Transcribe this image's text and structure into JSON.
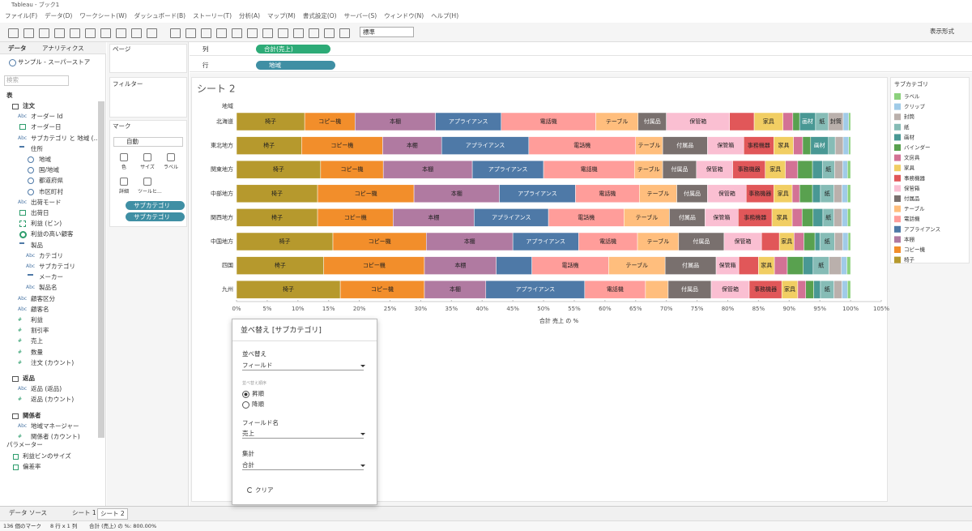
{
  "window": {
    "title": "Tableau - ブック1",
    "menu": [
      "ファイル(F)",
      "データ(D)",
      "ワークシート(W)",
      "ダッシュボード(B)",
      "ストーリー(T)",
      "分析(A)",
      "マップ(M)",
      "書式設定(O)",
      "サーバー(S)",
      "ウィンドウ(N)",
      "ヘルプ(H)"
    ]
  },
  "toolbar": {
    "standard": "標準",
    "show_me": "表示形式"
  },
  "data_pane": {
    "tabs": [
      "データ",
      "アナリティクス"
    ],
    "source": "サンプル - スーパーストア",
    "search": "検索",
    "section": "表",
    "tables": [
      {
        "name": "注文",
        "fields": [
          {
            "label": "オーダー Id",
            "icon": "Abc"
          },
          {
            "label": "オーダー日",
            "icon": "date"
          },
          {
            "label": "サブカテゴリ と 地域 (...",
            "icon": "Abc"
          },
          {
            "label": "住所",
            "icon": "hier",
            "children": [
              {
                "label": "地域",
                "icon": "geo"
              },
              {
                "label": "国/地域",
                "icon": "geo"
              },
              {
                "label": "都道府県",
                "icon": "geo"
              },
              {
                "label": "市区町村",
                "icon": "geo"
              }
            ]
          },
          {
            "label": "出荷モード",
            "icon": "Abc"
          },
          {
            "label": "出荷日",
            "icon": "date"
          },
          {
            "label": "利益 (ビン)",
            "icon": "bin"
          },
          {
            "label": "利益の高い顧客",
            "icon": "set"
          },
          {
            "label": "製品",
            "icon": "hier",
            "children": [
              {
                "label": "カテゴリ",
                "icon": "Abc"
              },
              {
                "label": "サブカテゴリ",
                "icon": "Abc"
              },
              {
                "label": "メーカー",
                "icon": "calc"
              },
              {
                "label": "製品名",
                "icon": "Abc"
              }
            ]
          },
          {
            "label": "顧客区分",
            "icon": "Abc"
          },
          {
            "label": "顧客名",
            "icon": "Abc"
          },
          {
            "label": "利益",
            "icon": "#"
          },
          {
            "label": "割引率",
            "icon": "#"
          },
          {
            "label": "売上",
            "icon": "#"
          },
          {
            "label": "数量",
            "icon": "#"
          },
          {
            "label": "注文 (カウント)",
            "icon": "#"
          }
        ]
      },
      {
        "name": "返品",
        "fields": [
          {
            "label": "返品 (返品)",
            "icon": "Abc"
          },
          {
            "label": "返品 (カウント)",
            "icon": "#"
          }
        ]
      },
      {
        "name": "関係者",
        "fields": [
          {
            "label": "地域マネージャー",
            "icon": "Abc"
          },
          {
            "label": "関係者 (カウント)",
            "icon": "#"
          }
        ]
      }
    ],
    "parameters_title": "パラメーター",
    "parameters": [
      "利益ビンのサイズ",
      "偏差率"
    ]
  },
  "shelves": {
    "pages": "ページ",
    "filters": "フィルター",
    "marks": "マーク",
    "mark_type": "自動",
    "mark_buttons": [
      "色",
      "サイズ",
      "ラベル",
      "詳細",
      "ツールヒ..."
    ],
    "mark_pills": [
      "サブカテゴリ",
      "サブカテゴリ"
    ],
    "columns_label": "列",
    "columns_pill": "合計(売上)",
    "rows_label": "行",
    "rows_pill": "地域"
  },
  "chart_data": {
    "type": "stacked_bar_horizontal",
    "title": "シート 2",
    "y_label": "地域",
    "x_label": "合計 売上 の %",
    "legend_title": "サブカテゴリ",
    "legend": "right",
    "grid": false,
    "categories": [
      "北海道",
      "東北地方",
      "関東地方",
      "中部地方",
      "関西地方",
      "中国地方",
      "四国",
      "九州"
    ],
    "xlim": [
      0,
      105
    ],
    "xticks": [
      {
        "value": 0,
        "label": "0%"
      },
      {
        "value": 5,
        "label": "5%"
      },
      {
        "value": 10,
        "label": "10%"
      },
      {
        "value": 15,
        "label": "15%"
      },
      {
        "value": 20,
        "label": "20%"
      },
      {
        "value": 25,
        "label": "25%"
      },
      {
        "value": 30,
        "label": "30%"
      },
      {
        "value": 35,
        "label": "35%"
      },
      {
        "value": 40,
        "label": "40%"
      },
      {
        "value": 45,
        "label": "45%"
      },
      {
        "value": 50,
        "label": "50%"
      },
      {
        "value": 55,
        "label": "55%"
      },
      {
        "value": 60,
        "label": "60%"
      },
      {
        "value": 65,
        "label": "65%"
      },
      {
        "value": 70,
        "label": "70%"
      },
      {
        "value": 75,
        "label": "75%"
      },
      {
        "value": 80,
        "label": "80%"
      },
      {
        "value": 85,
        "label": "85%"
      },
      {
        "value": 90,
        "label": "90%"
      },
      {
        "value": 95,
        "label": "95%"
      },
      {
        "value": 100,
        "label": "100%"
      },
      {
        "value": 105,
        "label": "105%"
      }
    ],
    "series": [
      {
        "name": "椅子",
        "color": "#b6992d",
        "values": [
          11.1,
          10.6,
          13.7,
          13.2,
          13.2,
          15.7,
          14.2,
          16.9
        ]
      },
      {
        "name": "コピー機",
        "color": "#f28e2b",
        "values": [
          8.2,
          13.2,
          10.2,
          15.7,
          12.3,
          15.2,
          16.4,
          13.7
        ]
      },
      {
        "name": "本棚",
        "color": "#b07aa1",
        "values": [
          13.1,
          9.6,
          14.5,
          13.9,
          13.2,
          14.1,
          11.7,
          10.0
        ]
      },
      {
        "name": "アプライアンス",
        "color": "#4e79a7",
        "values": [
          10.7,
          14.2,
          11.6,
          12.4,
          12.1,
          10.7,
          5.8,
          16.1
        ]
      },
      {
        "name": "電話機",
        "color": "#ff9d9a",
        "values": [
          15.4,
          17.4,
          14.8,
          10.4,
          12.3,
          9.6,
          12.5,
          9.9
        ]
      },
      {
        "name": "テーブル",
        "color": "#ffbe7d",
        "values": [
          6.9,
          4.4,
          4.6,
          6.1,
          7.4,
          6.7,
          9.2,
          3.7
        ]
      },
      {
        "name": "付属品",
        "color": "#79706e",
        "values": [
          4.6,
          7.3,
          5.5,
          5.0,
          5.8,
          7.4,
          8.3,
          7.0
        ]
      },
      {
        "name": "保管箱",
        "color": "#fabfd2",
        "values": [
          10.3,
          5.9,
          5.9,
          6.3,
          5.4,
          6.1,
          3.7,
          6.2
        ]
      },
      {
        "name": "事務機器",
        "color": "#e15759",
        "values": [
          4.0,
          4.9,
          5.3,
          4.5,
          5.5,
          2.9,
          3.2,
          5.3
        ]
      },
      {
        "name": "家具",
        "color": "#f1ce63",
        "values": [
          4.7,
          3.2,
          3.3,
          3.0,
          3.3,
          2.4,
          2.6,
          2.6
        ]
      },
      {
        "name": "文房具",
        "color": "#d37295",
        "values": [
          1.6,
          1.5,
          2.0,
          1.2,
          1.6,
          1.6,
          2.1,
          1.3
        ]
      },
      {
        "name": "バインダー",
        "color": "#59a14f",
        "values": [
          1.1,
          1.3,
          2.4,
          2.1,
          1.8,
          1.8,
          2.6,
          1.3
        ]
      },
      {
        "name": "画材",
        "color": "#499894",
        "values": [
          2.6,
          2.9,
          1.6,
          1.3,
          1.6,
          0.8,
          1.6,
          1.1
        ]
      },
      {
        "name": "紙",
        "color": "#86bcb6",
        "values": [
          2.1,
          1.1,
          2.0,
          2.2,
          1.8,
          2.4,
          2.6,
          2.2
        ]
      },
      {
        "name": "封筒",
        "color": "#bab0ac",
        "values": [
          2.4,
          1.3,
          1.3,
          1.3,
          1.3,
          1.3,
          2.0,
          1.3
        ]
      },
      {
        "name": "クリップ",
        "color": "#a0cbe8",
        "values": [
          0.9,
          0.9,
          0.8,
          0.9,
          0.9,
          0.9,
          0.9,
          0.9
        ]
      },
      {
        "name": "ラベル",
        "color": "#8cd17d",
        "values": [
          0.3,
          0.3,
          0.5,
          0.5,
          0.5,
          0.4,
          0.6,
          0.5
        ]
      }
    ]
  },
  "sort_dialog": {
    "title": "並べ替え [サブカテゴリ]",
    "sort_by_label": "並べ替え",
    "sort_by": "フィールド",
    "order_label": "並べ替え順序",
    "orders": [
      "昇順",
      "降順"
    ],
    "field_label": "フィールド名",
    "field": "売上",
    "aggregation_label": "集計",
    "aggregation": "合計",
    "clear": "クリア"
  },
  "sheet_tabs": [
    "データ ソース",
    "シート 1",
    "シート 2"
  ],
  "status": [
    "136 個のマーク",
    "8 行 x 1 列",
    "合計 (売上) の %: 800.00%"
  ]
}
